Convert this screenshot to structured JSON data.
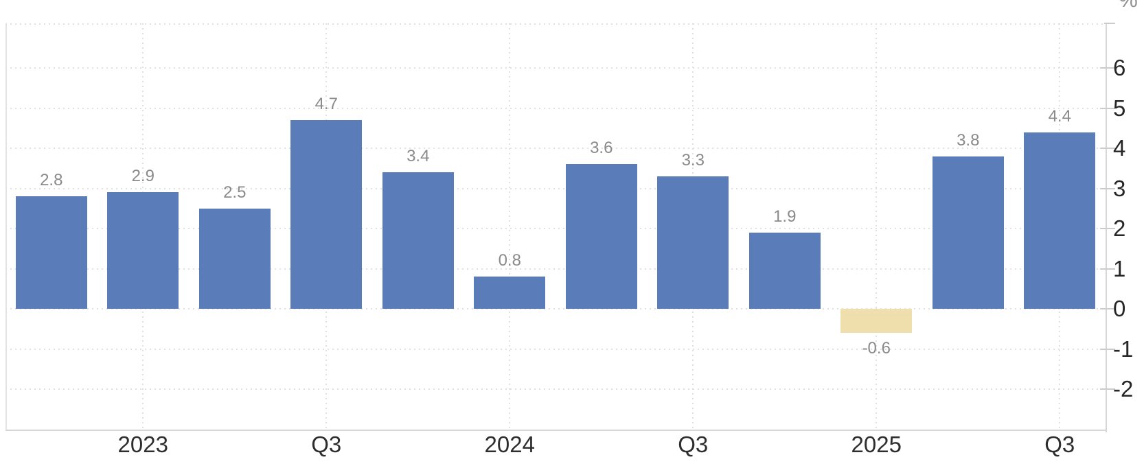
{
  "unit_label": "%",
  "chart_data": {
    "type": "bar",
    "title": "",
    "xlabel": "",
    "ylabel": "%",
    "values": [
      2.8,
      2.9,
      2.5,
      4.7,
      3.4,
      0.8,
      3.6,
      3.3,
      1.9,
      -0.6,
      3.8,
      4.4
    ],
    "value_labels": [
      "2.8",
      "2.9",
      "2.5",
      "4.7",
      "3.4",
      "0.8",
      "3.6",
      "3.3",
      "1.9",
      "-0.6",
      "3.8",
      "4.4"
    ],
    "x_ticks": [
      {
        "label": "2023",
        "bar_index": 1
      },
      {
        "label": "Q3",
        "bar_index": 3
      },
      {
        "label": "2024",
        "bar_index": 5
      },
      {
        "label": "Q3",
        "bar_index": 7
      },
      {
        "label": "2025",
        "bar_index": 9
      },
      {
        "label": "Q3",
        "bar_index": 11
      }
    ],
    "y_ticks": [
      6,
      5,
      4,
      3,
      2,
      1,
      0,
      -1,
      -2
    ],
    "ylim": [
      -3.0,
      7.1
    ],
    "grid": "dotted horizontal at integer values, dotted vertical at labeled x ticks",
    "legend": "none",
    "y_axis_position": "right",
    "colors": {
      "bar_positive": "#5a7cb8",
      "bar_negative": "#eedfad",
      "value_label": "#8a8a8a",
      "axis_text": "#2b2b2b",
      "gridline": "#e0e0e0",
      "axis_line": "#d0d0d0",
      "background": "#ffffff"
    }
  }
}
